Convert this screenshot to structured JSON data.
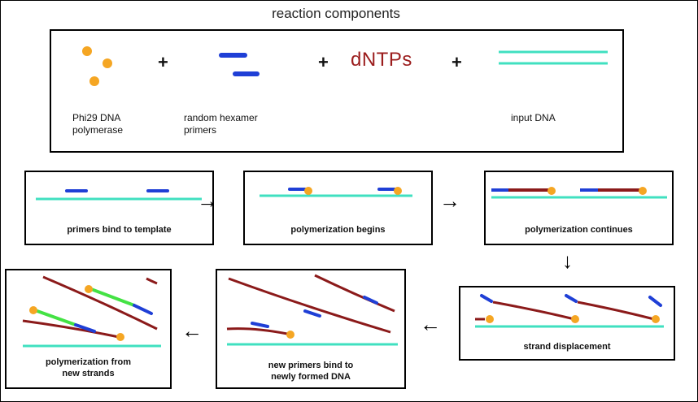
{
  "diagram": {
    "title": "reaction components",
    "components": {
      "polymerase_label": [
        "Phi29 DNA",
        "polymerase"
      ],
      "primers_label": [
        "random  hexamer",
        "primers"
      ],
      "dntps": "dNTPs",
      "input_label": "input DNA",
      "plus": "+"
    },
    "steps": [
      {
        "caption": [
          "primers bind to template"
        ]
      },
      {
        "caption": [
          "polymerization  begins"
        ]
      },
      {
        "caption": [
          "polymerization continues"
        ]
      },
      {
        "caption": [
          "strand displacement"
        ]
      },
      {
        "caption": [
          "new primers bind to",
          "newly formed DNA"
        ]
      },
      {
        "caption": [
          "polymerization from",
          "new strands"
        ]
      }
    ],
    "arrows": {
      "right": "→",
      "left": "←",
      "down": "↓"
    },
    "colors": {
      "template": "#40e0c0",
      "primer": "#1f3fd6",
      "polymerase": "#f5a623",
      "new_strand": "#8b1a1a",
      "second_strand": "#44e244",
      "dntps": "#9b1c1c"
    }
  }
}
